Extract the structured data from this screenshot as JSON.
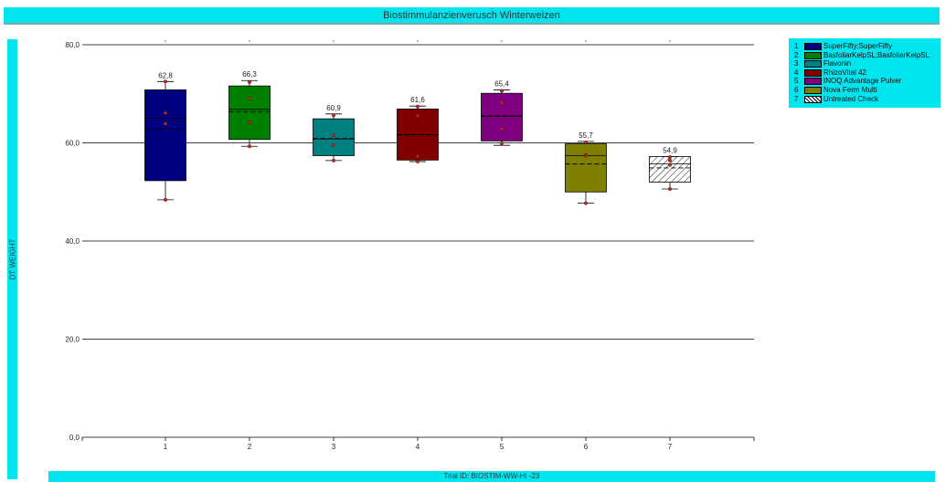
{
  "title": "Biostimmulanzienverusch Winterweizen",
  "y_axis_title": "DT WEIGHT",
  "footer": "Trial ID: BIOSTIM-WW-HI -23",
  "colors": {
    "bar_bg": "#00e5ee"
  },
  "chart_data": {
    "type": "box",
    "ylim": [
      0,
      80
    ],
    "yticks": [
      0,
      20,
      40,
      60,
      80
    ],
    "ytick_labels": [
      "0,0",
      "20,0",
      "40,0",
      "60,0",
      "80,0"
    ],
    "categories": [
      "1",
      "2",
      "3",
      "4",
      "5",
      "6",
      "7"
    ],
    "grid": true,
    "legend_position": "top-right",
    "boxes": [
      {
        "id": "1",
        "name": "SuperFifty;SuperFifty",
        "color": "#000080",
        "pattern": "solid",
        "min": 48.4,
        "q1": 52.3,
        "median": 65.0,
        "mean": 62.8,
        "q3": 70.8,
        "max": 72.5,
        "mean_label": "62,8",
        "points": [
          72.5,
          66.1,
          63.9,
          48.4
        ]
      },
      {
        "id": "2",
        "name": "BasfoliarKelpSL;BasfoliarKelpSL",
        "color": "#008000",
        "pattern": "solid",
        "min": 59.3,
        "q1": 60.7,
        "median": 66.8,
        "mean": 66.3,
        "q3": 71.6,
        "max": 72.7,
        "mean_label": "66,3",
        "points": [
          72.4,
          69.0,
          64.2,
          59.3
        ]
      },
      {
        "id": "3",
        "name": "Flavonin",
        "color": "#008080",
        "pattern": "solid",
        "min": 56.4,
        "q1": 57.4,
        "median": 60.8,
        "mean": 60.9,
        "q3": 64.9,
        "max": 65.9,
        "mean_label": "60,9",
        "points": [
          65.6,
          61.6,
          59.6,
          56.4
        ]
      },
      {
        "id": "4",
        "name": "RhizoVital 42",
        "color": "#800000",
        "pattern": "solid",
        "min": 56.2,
        "q1": 56.5,
        "median": 61.7,
        "mean": 61.6,
        "q3": 66.9,
        "max": 67.5,
        "mean_label": "61,6",
        "points": [
          67.4,
          65.5,
          57.3,
          56.2
        ]
      },
      {
        "id": "5",
        "name": "INOQ Advantage Pulver",
        "color": "#800080",
        "pattern": "solid",
        "min": 59.5,
        "q1": 60.4,
        "median": 65.5,
        "mean": 65.4,
        "q3": 70.1,
        "max": 70.8,
        "mean_label": "65,4",
        "points": [
          70.6,
          68.2,
          62.9,
          59.9
        ]
      },
      {
        "id": "6",
        "name": "Nova Ferm Multi",
        "color": "#808000",
        "pattern": "solid",
        "min": 47.7,
        "q1": 50.0,
        "median": 57.4,
        "mean": 55.7,
        "q3": 59.8,
        "max": 60.3,
        "mean_label": "55,7",
        "points": [
          60.1,
          57.5,
          57.4,
          47.7
        ]
      },
      {
        "id": "7",
        "name": "Untreated Check",
        "color": "#ffffff",
        "pattern": "hatch",
        "min": 50.6,
        "q1": 52.0,
        "median": 55.7,
        "mean": 54.9,
        "q3": 57.2,
        "max": 57.2,
        "mean_label": "54,9",
        "points": [
          57.1,
          56.4,
          55.5,
          50.6
        ]
      }
    ]
  }
}
